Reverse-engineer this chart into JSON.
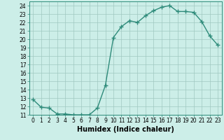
{
  "xlabel": "Humidex (Indice chaleur)",
  "x": [
    0,
    1,
    2,
    3,
    4,
    5,
    6,
    7,
    8,
    9,
    10,
    11,
    12,
    13,
    14,
    15,
    16,
    17,
    18,
    19,
    20,
    21,
    22,
    23
  ],
  "y": [
    12.8,
    11.9,
    11.8,
    11.1,
    11.1,
    11.0,
    11.0,
    11.0,
    11.8,
    14.5,
    20.2,
    21.5,
    22.2,
    22.0,
    22.8,
    23.4,
    23.8,
    24.0,
    23.3,
    23.3,
    23.2,
    22.1,
    20.4,
    19.3
  ],
  "line_color": "#2e8b7a",
  "marker": "+",
  "marker_size": 4,
  "bg_color": "#cceee8",
  "grid_color": "#a0c8c0",
  "ylim": [
    11,
    24.5
  ],
  "yticks": [
    11,
    12,
    13,
    14,
    15,
    16,
    17,
    18,
    19,
    20,
    21,
    22,
    23,
    24
  ],
  "xticks": [
    0,
    1,
    2,
    3,
    4,
    5,
    6,
    7,
    8,
    9,
    10,
    11,
    12,
    13,
    14,
    15,
    16,
    17,
    18,
    19,
    20,
    21,
    22,
    23
  ],
  "xlabel_fontsize": 7,
  "tick_fontsize": 5.5,
  "line_width": 1.0
}
